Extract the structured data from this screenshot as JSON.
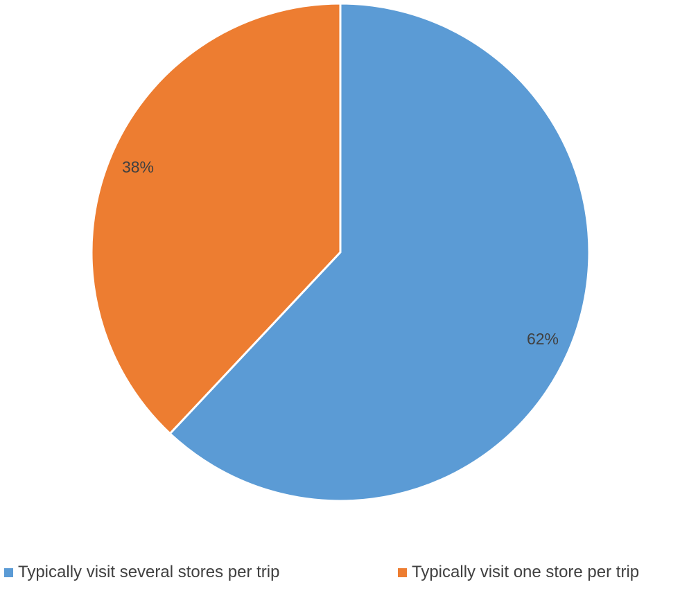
{
  "chart_data": {
    "type": "pie",
    "title": "",
    "slices": [
      {
        "label": "Typically visit several stores per trip",
        "value": 62,
        "display": "62%",
        "color": "#5B9BD5"
      },
      {
        "label": "Typically visit one store per trip",
        "value": 38,
        "display": "38%",
        "color": "#ED7D31"
      }
    ],
    "start_angle_deg": 0,
    "direction": "clockwise",
    "legend_position": "bottom"
  }
}
